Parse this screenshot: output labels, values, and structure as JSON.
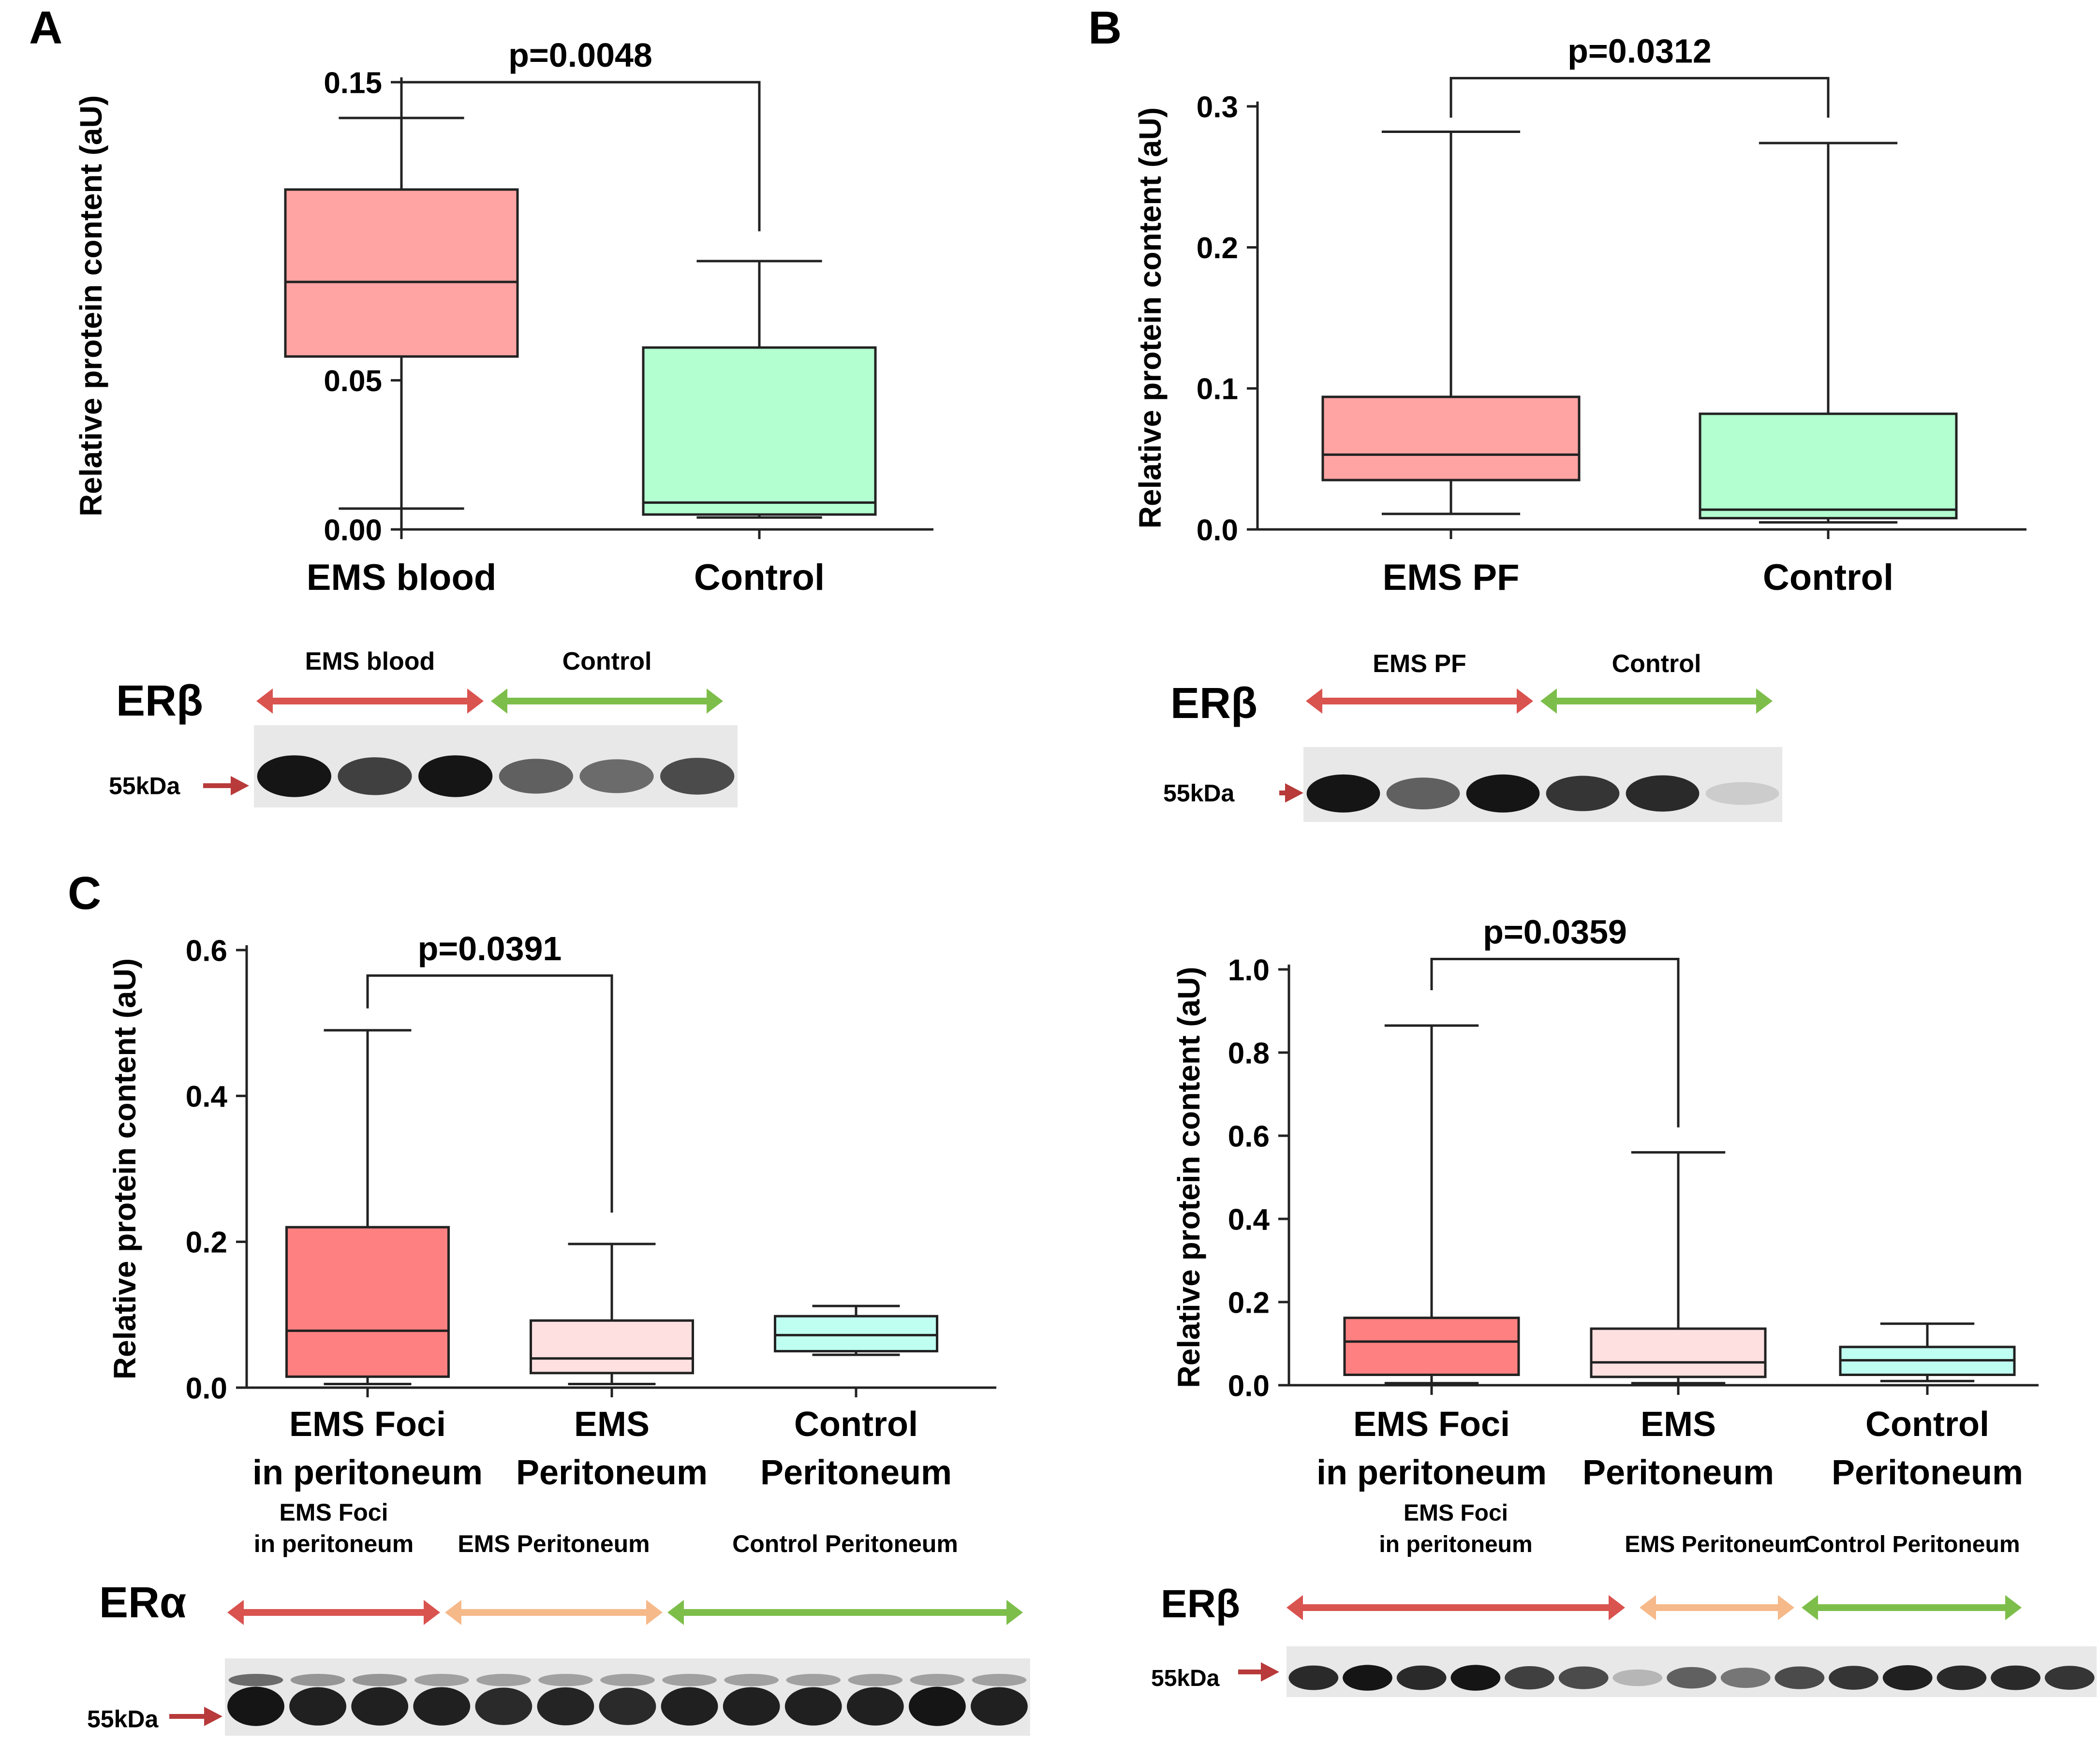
{
  "colors": {
    "axis": "#222222",
    "arrow_red": "#D9534F",
    "arrow_green": "#7DBE4B",
    "arrow_orange": "#F6B98A",
    "pointer": "#B83A3A"
  },
  "chart_data": [
    {
      "panel_letter": "A",
      "type": "boxplot",
      "ylabel": "Relative protein content (aU)",
      "ylim": [
        0,
        0.15
      ],
      "yticks": [
        0.0,
        0.05,
        0.1,
        0.15
      ],
      "ytick_labels": [
        "0.00",
        "0.05",
        "0.10",
        "0.15"
      ],
      "categories": [
        [
          "EMS blood"
        ],
        [
          "Control"
        ]
      ],
      "boxes": [
        {
          "min": 0.007,
          "q1": 0.058,
          "median": 0.083,
          "q3": 0.114,
          "max": 0.138,
          "fill": "#FFA3A3"
        },
        {
          "min": 0.004,
          "q1": 0.005,
          "median": 0.009,
          "q3": 0.061,
          "max": 0.09,
          "fill": "#B3FFD0"
        }
      ],
      "significance": {
        "from": 0,
        "to": 1,
        "label": "p=0.0048",
        "level": 0.15,
        "left_end": 0.144,
        "right_end": 0.1
      }
    },
    {
      "panel_letter": "B",
      "type": "boxplot",
      "ylabel": "Relative protein content (aU)",
      "ylim": [
        0,
        0.3
      ],
      "yticks": [
        0.0,
        0.1,
        0.2,
        0.3
      ],
      "ytick_labels": [
        "0.0",
        "0.1",
        "0.2",
        "0.3"
      ],
      "categories": [
        [
          "EMS PF"
        ],
        [
          "Control"
        ]
      ],
      "boxes": [
        {
          "min": 0.011,
          "q1": 0.035,
          "median": 0.053,
          "q3": 0.094,
          "max": 0.282,
          "fill": "#FFA3A3"
        },
        {
          "min": 0.005,
          "q1": 0.008,
          "median": 0.014,
          "q3": 0.082,
          "max": 0.274,
          "fill": "#B3FFD0"
        }
      ],
      "significance": {
        "from": 0,
        "to": 1,
        "label": "p=0.0312",
        "level": 0.32,
        "left_end": 0.292,
        "right_end": 0.292
      }
    },
    {
      "panel_letter": "C",
      "type": "boxplot",
      "ylabel": "Relative protein content (aU)",
      "ylim": [
        0,
        0.6
      ],
      "yticks": [
        0.0,
        0.2,
        0.4,
        0.6
      ],
      "ytick_labels": [
        "0.0",
        "0.2",
        "0.4",
        "0.6"
      ],
      "categories": [
        [
          "EMS Foci",
          "in peritoneum"
        ],
        [
          "EMS",
          "Peritoneum"
        ],
        [
          "Control",
          "Peritoneum"
        ]
      ],
      "boxes": [
        {
          "min": 0.005,
          "q1": 0.015,
          "median": 0.078,
          "q3": 0.22,
          "max": 0.49,
          "fill": "#FF8080"
        },
        {
          "min": 0.005,
          "q1": 0.02,
          "median": 0.04,
          "q3": 0.092,
          "max": 0.197,
          "fill": "#FFE0E0"
        },
        {
          "min": 0.045,
          "q1": 0.05,
          "median": 0.072,
          "q3": 0.098,
          "max": 0.112,
          "fill": "#BFFFF2"
        }
      ],
      "significance": {
        "from": 0,
        "to": 1,
        "label": "p=0.0391",
        "level": 0.565,
        "left_end": 0.52,
        "right_end": 0.24
      }
    },
    {
      "panel_letter": "",
      "type": "boxplot",
      "ylabel": "Relative protein content (aU)",
      "ylim": [
        0,
        1.0
      ],
      "yticks": [
        0.0,
        0.2,
        0.4,
        0.6,
        0.8,
        1.0
      ],
      "ytick_labels": [
        "0.0",
        "0.2",
        "0.4",
        "0.6",
        "0.8",
        "1.0"
      ],
      "categories": [
        [
          "EMS Foci",
          "in peritoneum"
        ],
        [
          "EMS",
          "Peritoneum"
        ],
        [
          "Control",
          "Peritoneum"
        ]
      ],
      "boxes": [
        {
          "min": 0.005,
          "q1": 0.025,
          "median": 0.105,
          "q3": 0.162,
          "max": 0.865,
          "fill": "#FF8080"
        },
        {
          "min": 0.005,
          "q1": 0.02,
          "median": 0.055,
          "q3": 0.136,
          "max": 0.56,
          "fill": "#FFE0E0"
        },
        {
          "min": 0.01,
          "q1": 0.025,
          "median": 0.06,
          "q3": 0.092,
          "max": 0.148,
          "fill": "#BFFFF2"
        }
      ],
      "significance": {
        "from": 0,
        "to": 1,
        "label": "p=0.0359",
        "level": 1.025,
        "left_end": 0.95,
        "right_end": 0.62
      }
    }
  ],
  "blots": [
    {
      "protein": "ERβ",
      "kda": "55kDa",
      "groups": [
        {
          "label_lines": [
            "EMS blood"
          ],
          "color": "#D9534F"
        },
        {
          "label_lines": [
            "Control"
          ],
          "color": "#7DBE4B"
        }
      ],
      "band_intensity": [
        0.95,
        0.75,
        0.95,
        0.6,
        0.55,
        0.7
      ],
      "upper_band_intensity": []
    },
    {
      "protein": "ERβ",
      "kda": "55kDa",
      "groups": [
        {
          "label_lines": [
            "EMS PF"
          ],
          "color": "#D9534F"
        },
        {
          "label_lines": [
            "Control"
          ],
          "color": "#7DBE4B"
        }
      ],
      "band_intensity": [
        0.95,
        0.6,
        0.95,
        0.8,
        0.85,
        0.1
      ],
      "upper_band_intensity": []
    },
    {
      "protein": "ERα",
      "kda": "55kDa",
      "groups": [
        {
          "label_lines": [
            "EMS Foci",
            "in peritoneum"
          ],
          "color": "#D9534F"
        },
        {
          "label_lines": [
            "EMS Peritoneum"
          ],
          "color": "#F6B98A"
        },
        {
          "label_lines": [
            "Control Peritoneum"
          ],
          "color": "#7DBE4B"
        }
      ],
      "band_intensity": [
        0.95,
        0.9,
        0.9,
        0.9,
        0.85,
        0.88,
        0.85,
        0.9,
        0.9,
        0.9,
        0.9,
        0.95,
        0.9
      ],
      "upper_band_intensity": [
        0.55,
        0.35,
        0.35,
        0.3,
        0.3,
        0.3,
        0.3,
        0.3,
        0.3,
        0.3,
        0.3,
        0.3,
        0.3
      ]
    },
    {
      "protein": "ERβ",
      "kda": "55kDa",
      "groups": [
        {
          "label_lines": [
            "EMS Foci",
            "in peritoneum"
          ],
          "color": "#D9534F"
        },
        {
          "label_lines": [
            "EMS Peritoneum"
          ],
          "color": "#F6B98A"
        },
        {
          "label_lines": [
            "Control Peritoneum"
          ],
          "color": "#7DBE4B"
        }
      ],
      "band_intensity": [
        0.85,
        0.95,
        0.85,
        0.95,
        0.75,
        0.7,
        0.2,
        0.6,
        0.5,
        0.7,
        0.8,
        0.9,
        0.85,
        0.85,
        0.8
      ],
      "upper_band_intensity": []
    }
  ]
}
